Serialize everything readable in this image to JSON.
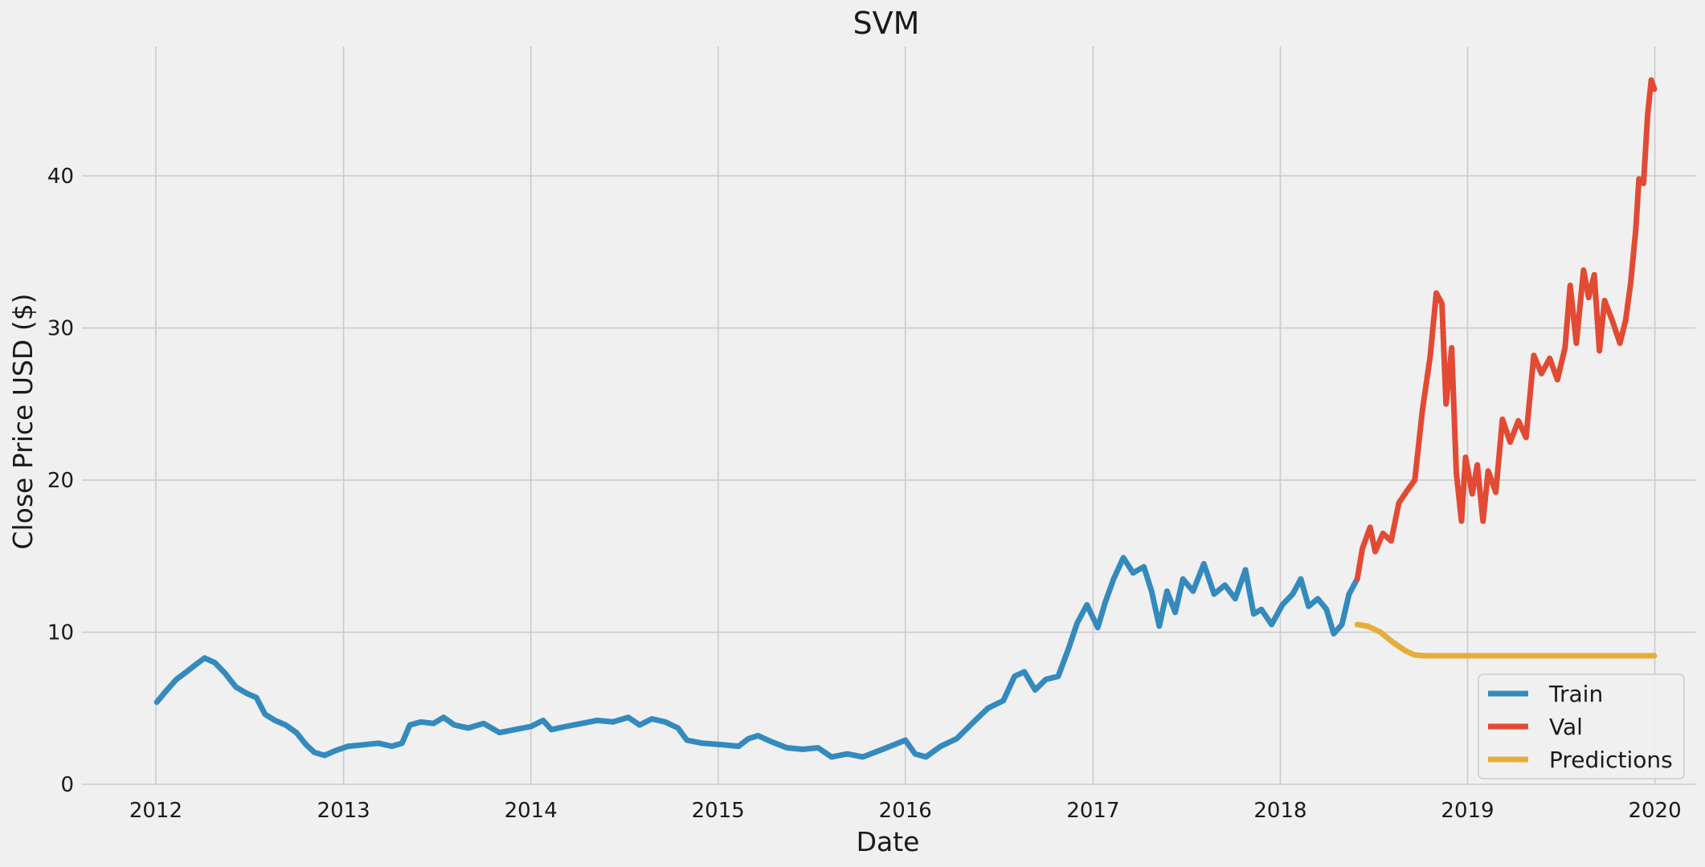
{
  "chart_data": {
    "type": "line",
    "title": "SVM",
    "xlabel": "Date",
    "ylabel": "Close Price USD ($)",
    "xlim": [
      "2011-08-10",
      "2020-03-20"
    ],
    "ylim": [
      0,
      48.5
    ],
    "x_ticks": [
      "2012",
      "2013",
      "2014",
      "2015",
      "2016",
      "2017",
      "2018",
      "2019",
      "2020"
    ],
    "y_ticks": [
      0,
      10,
      20,
      30,
      40
    ],
    "grid": true,
    "legend_position": "bottom-right",
    "series": [
      {
        "name": "Train",
        "color": "#348abd",
        "points": [
          [
            "2012-01-03",
            5.4
          ],
          [
            "2012-01-20",
            6.1
          ],
          [
            "2012-02-10",
            6.9
          ],
          [
            "2012-03-01",
            7.4
          ],
          [
            "2012-03-20",
            7.9
          ],
          [
            "2012-04-05",
            8.3
          ],
          [
            "2012-04-25",
            8.0
          ],
          [
            "2012-05-15",
            7.3
          ],
          [
            "2012-06-05",
            6.4
          ],
          [
            "2012-06-25",
            6.0
          ],
          [
            "2012-07-15",
            5.7
          ],
          [
            "2012-08-01",
            4.6
          ],
          [
            "2012-08-20",
            4.2
          ],
          [
            "2012-09-10",
            3.9
          ],
          [
            "2012-10-01",
            3.4
          ],
          [
            "2012-10-20",
            2.6
          ],
          [
            "2012-11-05",
            2.1
          ],
          [
            "2012-11-25",
            1.9
          ],
          [
            "2012-12-15",
            2.2
          ],
          [
            "2013-01-10",
            2.5
          ],
          [
            "2013-02-10",
            2.6
          ],
          [
            "2013-03-10",
            2.7
          ],
          [
            "2013-04-05",
            2.5
          ],
          [
            "2013-04-25",
            2.7
          ],
          [
            "2013-05-10",
            3.9
          ],
          [
            "2013-06-01",
            4.1
          ],
          [
            "2013-06-25",
            4.0
          ],
          [
            "2013-07-15",
            4.4
          ],
          [
            "2013-08-05",
            3.9
          ],
          [
            "2013-09-01",
            3.7
          ],
          [
            "2013-10-01",
            4.0
          ],
          [
            "2013-11-01",
            3.4
          ],
          [
            "2013-12-01",
            3.6
          ],
          [
            "2014-01-01",
            3.8
          ],
          [
            "2014-01-25",
            4.2
          ],
          [
            "2014-02-10",
            3.6
          ],
          [
            "2014-03-10",
            3.8
          ],
          [
            "2014-04-10",
            4.0
          ],
          [
            "2014-05-10",
            4.2
          ],
          [
            "2014-06-10",
            4.1
          ],
          [
            "2014-07-10",
            4.4
          ],
          [
            "2014-08-01",
            3.9
          ],
          [
            "2014-08-25",
            4.3
          ],
          [
            "2014-09-20",
            4.1
          ],
          [
            "2014-10-15",
            3.7
          ],
          [
            "2014-11-01",
            2.9
          ],
          [
            "2014-12-01",
            2.7
          ],
          [
            "2015-01-10",
            2.6
          ],
          [
            "2015-02-10",
            2.5
          ],
          [
            "2015-03-01",
            3.0
          ],
          [
            "2015-03-20",
            3.2
          ],
          [
            "2015-04-15",
            2.8
          ],
          [
            "2015-05-15",
            2.4
          ],
          [
            "2015-06-15",
            2.3
          ],
          [
            "2015-07-15",
            2.4
          ],
          [
            "2015-08-10",
            1.8
          ],
          [
            "2015-09-10",
            2.0
          ],
          [
            "2015-10-10",
            1.8
          ],
          [
            "2015-11-10",
            2.2
          ],
          [
            "2015-12-10",
            2.6
          ],
          [
            "2016-01-01",
            2.9
          ],
          [
            "2016-01-20",
            2.0
          ],
          [
            "2016-02-10",
            1.8
          ],
          [
            "2016-03-10",
            2.5
          ],
          [
            "2016-04-10",
            3.0
          ],
          [
            "2016-05-10",
            4.0
          ],
          [
            "2016-06-10",
            5.0
          ],
          [
            "2016-07-10",
            5.5
          ],
          [
            "2016-08-01",
            7.1
          ],
          [
            "2016-08-20",
            7.4
          ],
          [
            "2016-09-10",
            6.2
          ],
          [
            "2016-10-01",
            6.9
          ],
          [
            "2016-10-25",
            7.1
          ],
          [
            "2016-11-15",
            9.0
          ],
          [
            "2016-12-01",
            10.6
          ],
          [
            "2016-12-20",
            11.8
          ],
          [
            "2017-01-10",
            10.3
          ],
          [
            "2017-01-25",
            12.0
          ],
          [
            "2017-02-10",
            13.5
          ],
          [
            "2017-03-01",
            14.9
          ],
          [
            "2017-03-20",
            13.9
          ],
          [
            "2017-04-10",
            14.3
          ],
          [
            "2017-04-25",
            12.7
          ],
          [
            "2017-05-10",
            10.4
          ],
          [
            "2017-05-25",
            12.7
          ],
          [
            "2017-06-10",
            11.3
          ],
          [
            "2017-06-25",
            13.5
          ],
          [
            "2017-07-15",
            12.7
          ],
          [
            "2017-08-05",
            14.5
          ],
          [
            "2017-08-25",
            12.5
          ],
          [
            "2017-09-15",
            13.1
          ],
          [
            "2017-10-05",
            12.2
          ],
          [
            "2017-10-25",
            14.1
          ],
          [
            "2017-11-10",
            11.2
          ],
          [
            "2017-11-25",
            11.5
          ],
          [
            "2017-12-15",
            10.5
          ],
          [
            "2018-01-05",
            11.8
          ],
          [
            "2018-01-25",
            12.5
          ],
          [
            "2018-02-10",
            13.5
          ],
          [
            "2018-02-25",
            11.7
          ],
          [
            "2018-03-15",
            12.2
          ],
          [
            "2018-04-01",
            11.5
          ],
          [
            "2018-04-15",
            9.9
          ],
          [
            "2018-05-01",
            10.5
          ],
          [
            "2018-05-15",
            12.5
          ],
          [
            "2018-05-31",
            13.5
          ]
        ]
      },
      {
        "name": "Val",
        "color": "#e24a33",
        "points": [
          [
            "2018-05-31",
            13.5
          ],
          [
            "2018-06-10",
            15.5
          ],
          [
            "2018-06-25",
            16.9
          ],
          [
            "2018-07-05",
            15.3
          ],
          [
            "2018-07-20",
            16.5
          ],
          [
            "2018-08-05",
            16.0
          ],
          [
            "2018-08-20",
            18.5
          ],
          [
            "2018-09-05",
            19.3
          ],
          [
            "2018-09-20",
            20.0
          ],
          [
            "2018-10-05",
            24.6
          ],
          [
            "2018-10-20",
            28.1
          ],
          [
            "2018-11-01",
            32.3
          ],
          [
            "2018-11-12",
            31.6
          ],
          [
            "2018-11-20",
            25.0
          ],
          [
            "2018-12-01",
            28.7
          ],
          [
            "2018-12-10",
            20.5
          ],
          [
            "2018-12-20",
            17.3
          ],
          [
            "2018-12-28",
            21.5
          ],
          [
            "2019-01-10",
            19.1
          ],
          [
            "2019-01-20",
            21.0
          ],
          [
            "2019-01-31",
            17.3
          ],
          [
            "2019-02-10",
            20.6
          ],
          [
            "2019-02-25",
            19.2
          ],
          [
            "2019-03-10",
            24.0
          ],
          [
            "2019-03-25",
            22.5
          ],
          [
            "2019-04-10",
            23.9
          ],
          [
            "2019-04-25",
            22.8
          ],
          [
            "2019-05-10",
            28.2
          ],
          [
            "2019-05-25",
            27.0
          ],
          [
            "2019-06-10",
            28.0
          ],
          [
            "2019-06-25",
            26.6
          ],
          [
            "2019-07-10",
            28.7
          ],
          [
            "2019-07-20",
            32.8
          ],
          [
            "2019-08-01",
            29.0
          ],
          [
            "2019-08-15",
            33.8
          ],
          [
            "2019-08-25",
            32.0
          ],
          [
            "2019-09-05",
            33.5
          ],
          [
            "2019-09-15",
            28.5
          ],
          [
            "2019-09-25",
            31.8
          ],
          [
            "2019-10-10",
            30.5
          ],
          [
            "2019-10-25",
            29.0
          ],
          [
            "2019-11-05",
            30.5
          ],
          [
            "2019-11-15",
            33.0
          ],
          [
            "2019-11-25",
            36.5
          ],
          [
            "2019-12-01",
            39.8
          ],
          [
            "2019-12-10",
            39.5
          ],
          [
            "2019-12-18",
            44.0
          ],
          [
            "2019-12-25",
            46.3
          ],
          [
            "2019-12-31",
            45.7
          ]
        ]
      },
      {
        "name": "Predictions",
        "color": "#e5ae38",
        "points": [
          [
            "2018-05-31",
            10.5
          ],
          [
            "2018-06-20",
            10.4
          ],
          [
            "2018-07-15",
            10.0
          ],
          [
            "2018-08-10",
            9.3
          ],
          [
            "2018-09-01",
            8.8
          ],
          [
            "2018-09-20",
            8.5
          ],
          [
            "2018-10-10",
            8.45
          ],
          [
            "2019-01-01",
            8.45
          ],
          [
            "2019-06-01",
            8.45
          ],
          [
            "2019-12-31",
            8.45
          ]
        ]
      }
    ]
  }
}
